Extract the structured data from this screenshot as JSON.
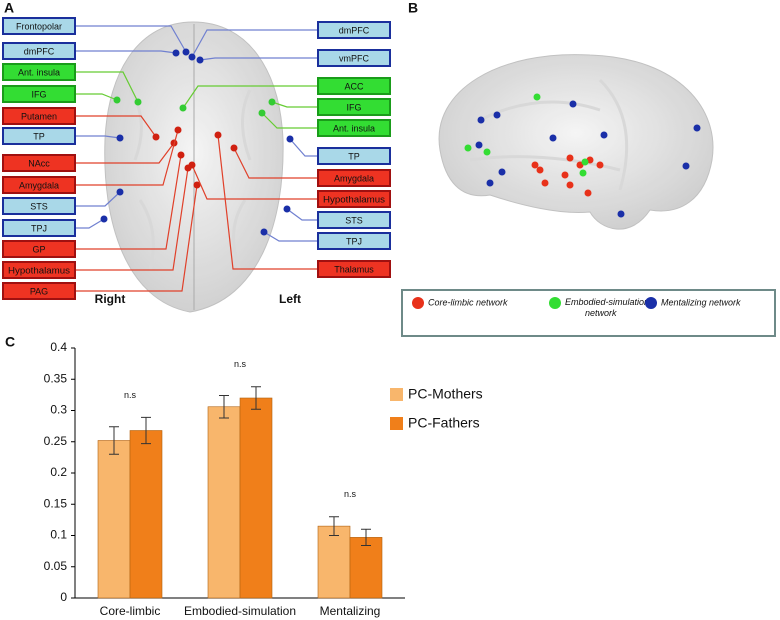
{
  "panel_a": {
    "label": "A",
    "side_left": "Right",
    "side_right": "Left",
    "labels_left": [
      {
        "text": "Frontopolar",
        "color": "#a9d8e8"
      },
      {
        "text": "dmPFC",
        "color": "#a9d8e8"
      },
      {
        "text": "Ant. insula",
        "color": "#33dd33"
      },
      {
        "text": "IFG",
        "color": "#33dd33"
      },
      {
        "text": "Putamen",
        "color": "#ee3322"
      },
      {
        "text": "TP",
        "color": "#a9d8e8"
      },
      {
        "text": "NAcc",
        "color": "#ee3322"
      },
      {
        "text": "Amygdala",
        "color": "#ee3322"
      },
      {
        "text": "STS",
        "color": "#a9d8e8"
      },
      {
        "text": "TPJ",
        "color": "#a9d8e8"
      },
      {
        "text": "GP",
        "color": "#ee3322"
      },
      {
        "text": "Hypothalamus",
        "color": "#ee3322"
      },
      {
        "text": "PAG",
        "color": "#ee3322"
      }
    ],
    "labels_right": [
      {
        "text": "dmPFC",
        "color": "#a9d8e8"
      },
      {
        "text": "vmPFC",
        "color": "#a9d8e8"
      },
      {
        "text": "ACC",
        "color": "#33dd33"
      },
      {
        "text": "IFG",
        "color": "#33dd33"
      },
      {
        "text": "Ant. insula",
        "color": "#33dd33"
      },
      {
        "text": "TP",
        "color": "#a9d8e8"
      },
      {
        "text": "Amygdala",
        "color": "#ee3322"
      },
      {
        "text": "Hypothalamus",
        "color": "#ee3322"
      },
      {
        "text": "STS",
        "color": "#a9d8e8"
      },
      {
        "text": "TPJ",
        "color": "#a9d8e8"
      },
      {
        "text": "Thalamus",
        "color": "#ee3322"
      }
    ]
  },
  "panel_b": {
    "label": "B",
    "legend": [
      {
        "text": "Core-limbic network",
        "color": "#e8311a"
      },
      {
        "text": "Embodied-simulation network",
        "color": "#33dd33"
      },
      {
        "text": "Mentalizing network",
        "color": "#1a2fa8"
      }
    ]
  },
  "chart_data": {
    "type": "bar",
    "panel_label": "C",
    "categories": [
      "Core-limbic",
      "Embodied-simulation",
      "Mentalizing"
    ],
    "series": [
      {
        "name": "PC-Mothers",
        "color": "#f8b66c",
        "values": [
          0.252,
          0.306,
          0.115
        ],
        "errors": [
          0.022,
          0.018,
          0.015
        ]
      },
      {
        "name": "PC-Fathers",
        "color": "#f07f1a",
        "values": [
          0.268,
          0.32,
          0.097
        ],
        "errors": [
          0.021,
          0.018,
          0.013
        ]
      }
    ],
    "annotations": [
      "n.s",
      "n.s",
      "n.s"
    ],
    "ylim": [
      0,
      0.4
    ],
    "yticks": [
      0,
      0.05,
      0.1,
      0.15,
      0.2,
      0.25,
      0.3,
      0.35,
      0.4
    ]
  }
}
